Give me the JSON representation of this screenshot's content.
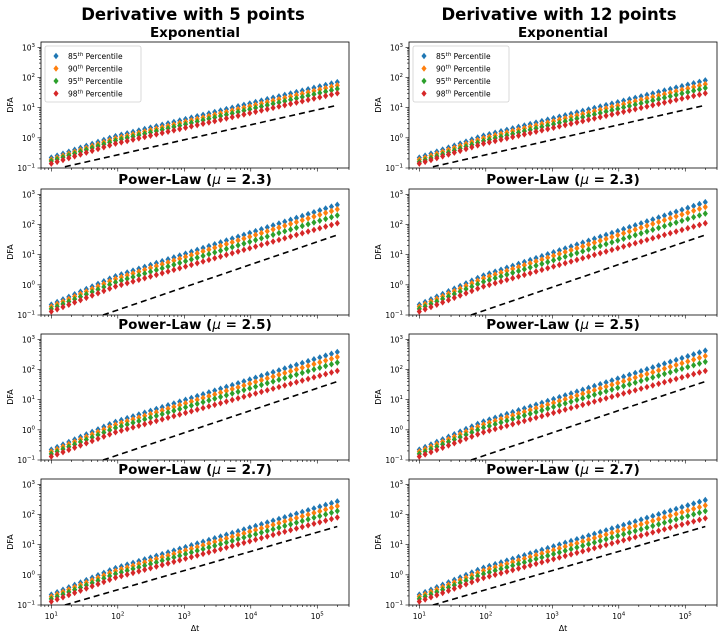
{
  "figure": {
    "column_titles": [
      "Derivative with 5 points",
      "Derivative with 12 points"
    ]
  },
  "colors": {
    "p85": "#1f77b4",
    "p90": "#ff7f0e",
    "p95": "#2ca02c",
    "p98": "#d62728",
    "reference_line": "#000000"
  },
  "chart_data": [
    {
      "type": "scatter",
      "col": 0,
      "row": 0,
      "title": "Exponential",
      "title_main": "Exponential",
      "title_mu": "",
      "xlabel": "",
      "ylabel": "DFA",
      "xscale": "log",
      "yscale": "log",
      "xlim": [
        7,
        300000
      ],
      "ylim": [
        0.1,
        1500
      ],
      "legend": "top-left",
      "reference_line": {
        "style": "dashed",
        "x": [
          16,
          200000
        ],
        "y": [
          0.11,
          12
        ]
      },
      "series": [
        {
          "name": "85th Percentile",
          "color": "#1f77b4",
          "x_start": 10,
          "x_end": 200000,
          "y_start": 0.22,
          "y_end": 70
        },
        {
          "name": "90th Percentile",
          "color": "#ff7f0e",
          "x_start": 10,
          "x_end": 200000,
          "y_start": 0.19,
          "y_end": 55
        },
        {
          "name": "95th Percentile",
          "color": "#2ca02c",
          "x_start": 10,
          "x_end": 200000,
          "y_start": 0.17,
          "y_end": 42
        },
        {
          "name": "98th Percentile",
          "color": "#d62728",
          "x_start": 10,
          "x_end": 200000,
          "y_start": 0.14,
          "y_end": 30
        }
      ]
    },
    {
      "type": "scatter",
      "col": 1,
      "row": 0,
      "title": "Exponential",
      "title_main": "Exponential",
      "title_mu": "",
      "xlabel": "",
      "ylabel": "DFA",
      "xscale": "log",
      "yscale": "log",
      "xlim": [
        7,
        300000
      ],
      "ylim": [
        0.1,
        1500
      ],
      "legend": "top-left",
      "reference_line": {
        "style": "dashed",
        "x": [
          16,
          200000
        ],
        "y": [
          0.11,
          12
        ]
      },
      "series": [
        {
          "name": "85th Percentile",
          "color": "#1f77b4",
          "x_start": 10,
          "x_end": 200000,
          "y_start": 0.22,
          "y_end": 80
        },
        {
          "name": "90th Percentile",
          "color": "#ff7f0e",
          "x_start": 10,
          "x_end": 200000,
          "y_start": 0.19,
          "y_end": 60
        },
        {
          "name": "95th Percentile",
          "color": "#2ca02c",
          "x_start": 10,
          "x_end": 200000,
          "y_start": 0.16,
          "y_end": 45
        },
        {
          "name": "98th Percentile",
          "color": "#d62728",
          "x_start": 10,
          "x_end": 200000,
          "y_start": 0.14,
          "y_end": 30
        }
      ]
    },
    {
      "type": "scatter",
      "col": 0,
      "row": 1,
      "title": "Power-Law (μ = 2.3)",
      "title_main": "Power-Law (",
      "title_mu": "μ",
      "title_rest": " = 2.3)",
      "xlabel": "",
      "ylabel": "DFA",
      "xscale": "log",
      "yscale": "log",
      "xlim": [
        7,
        300000
      ],
      "ylim": [
        0.1,
        1500
      ],
      "legend": "",
      "reference_line": {
        "style": "dashed",
        "x": [
          60,
          200000
        ],
        "y": [
          0.1,
          45
        ]
      },
      "series": [
        {
          "name": "85th Percentile",
          "color": "#1f77b4",
          "x_start": 10,
          "x_end": 200000,
          "y_start": 0.22,
          "y_end": 450
        },
        {
          "name": "90th Percentile",
          "color": "#ff7f0e",
          "x_start": 10,
          "x_end": 200000,
          "y_start": 0.19,
          "y_end": 320
        },
        {
          "name": "95th Percentile",
          "color": "#2ca02c",
          "x_start": 10,
          "x_end": 200000,
          "y_start": 0.16,
          "y_end": 200
        },
        {
          "name": "98th Percentile",
          "color": "#d62728",
          "x_start": 10,
          "x_end": 200000,
          "y_start": 0.13,
          "y_end": 110
        }
      ]
    },
    {
      "type": "scatter",
      "col": 1,
      "row": 1,
      "title": "Power-Law (μ = 2.3)",
      "title_main": "Power-Law (",
      "title_mu": "μ",
      "title_rest": " = 2.3)",
      "xlabel": "",
      "ylabel": "DFA",
      "xscale": "log",
      "yscale": "log",
      "xlim": [
        7,
        300000
      ],
      "ylim": [
        0.1,
        1500
      ],
      "legend": "",
      "reference_line": {
        "style": "dashed",
        "x": [
          60,
          200000
        ],
        "y": [
          0.1,
          45
        ]
      },
      "series": [
        {
          "name": "85th Percentile",
          "color": "#1f77b4",
          "x_start": 10,
          "x_end": 200000,
          "y_start": 0.22,
          "y_end": 550
        },
        {
          "name": "90th Percentile",
          "color": "#ff7f0e",
          "x_start": 10,
          "x_end": 200000,
          "y_start": 0.19,
          "y_end": 380
        },
        {
          "name": "95th Percentile",
          "color": "#2ca02c",
          "x_start": 10,
          "x_end": 200000,
          "y_start": 0.16,
          "y_end": 230
        },
        {
          "name": "98th Percentile",
          "color": "#d62728",
          "x_start": 10,
          "x_end": 200000,
          "y_start": 0.13,
          "y_end": 110
        }
      ]
    },
    {
      "type": "scatter",
      "col": 0,
      "row": 2,
      "title": "Power-Law (μ = 2.5)",
      "title_main": "Power-Law (",
      "title_mu": "μ",
      "title_rest": " = 2.5)",
      "xlabel": "",
      "ylabel": "DFA",
      "xscale": "log",
      "yscale": "log",
      "xlim": [
        7,
        300000
      ],
      "ylim": [
        0.1,
        1500
      ],
      "legend": "",
      "reference_line": {
        "style": "dashed",
        "x": [
          60,
          200000
        ],
        "y": [
          0.1,
          40
        ]
      },
      "series": [
        {
          "name": "85th Percentile",
          "color": "#1f77b4",
          "x_start": 10,
          "x_end": 200000,
          "y_start": 0.22,
          "y_end": 380
        },
        {
          "name": "90th Percentile",
          "color": "#ff7f0e",
          "x_start": 10,
          "x_end": 200000,
          "y_start": 0.19,
          "y_end": 260
        },
        {
          "name": "95th Percentile",
          "color": "#2ca02c",
          "x_start": 10,
          "x_end": 200000,
          "y_start": 0.16,
          "y_end": 170
        },
        {
          "name": "98th Percentile",
          "color": "#d62728",
          "x_start": 10,
          "x_end": 200000,
          "y_start": 0.13,
          "y_end": 90
        }
      ]
    },
    {
      "type": "scatter",
      "col": 1,
      "row": 2,
      "title": "Power-Law (μ = 2.5)",
      "title_main": "Power-Law (",
      "title_mu": "μ",
      "title_rest": " = 2.5)",
      "xlabel": "",
      "ylabel": "DFA",
      "xscale": "log",
      "yscale": "log",
      "xlim": [
        7,
        300000
      ],
      "ylim": [
        0.1,
        1500
      ],
      "legend": "",
      "reference_line": {
        "style": "dashed",
        "x": [
          60,
          200000
        ],
        "y": [
          0.1,
          40
        ]
      },
      "series": [
        {
          "name": "85th Percentile",
          "color": "#1f77b4",
          "x_start": 10,
          "x_end": 200000,
          "y_start": 0.22,
          "y_end": 420
        },
        {
          "name": "90th Percentile",
          "color": "#ff7f0e",
          "x_start": 10,
          "x_end": 200000,
          "y_start": 0.19,
          "y_end": 280
        },
        {
          "name": "95th Percentile",
          "color": "#2ca02c",
          "x_start": 10,
          "x_end": 200000,
          "y_start": 0.16,
          "y_end": 180
        },
        {
          "name": "98th Percentile",
          "color": "#d62728",
          "x_start": 10,
          "x_end": 200000,
          "y_start": 0.13,
          "y_end": 90
        }
      ]
    },
    {
      "type": "scatter",
      "col": 0,
      "row": 3,
      "title": "Power-Law (μ = 2.7)",
      "title_main": "Power-Law (",
      "title_mu": "μ",
      "title_rest": " = 2.7)",
      "xlabel": "Δt",
      "ylabel": "DFA",
      "xscale": "log",
      "yscale": "log",
      "xlim": [
        7,
        300000
      ],
      "ylim": [
        0.1,
        1500
      ],
      "legend": "",
      "reference_line": {
        "style": "dashed",
        "x": [
          16,
          200000
        ],
        "y": [
          0.1,
          40
        ]
      },
      "series": [
        {
          "name": "85th Percentile",
          "color": "#1f77b4",
          "x_start": 10,
          "x_end": 200000,
          "y_start": 0.22,
          "y_end": 270
        },
        {
          "name": "90th Percentile",
          "color": "#ff7f0e",
          "x_start": 10,
          "x_end": 200000,
          "y_start": 0.19,
          "y_end": 190
        },
        {
          "name": "95th Percentile",
          "color": "#2ca02c",
          "x_start": 10,
          "x_end": 200000,
          "y_start": 0.16,
          "y_end": 130
        },
        {
          "name": "98th Percentile",
          "color": "#d62728",
          "x_start": 10,
          "x_end": 200000,
          "y_start": 0.13,
          "y_end": 80
        }
      ]
    },
    {
      "type": "scatter",
      "col": 1,
      "row": 3,
      "title": "Power-Law (μ = 2.7)",
      "title_main": "Power-Law (",
      "title_mu": "μ",
      "title_rest": " = 2.7)",
      "xlabel": "Δt",
      "ylabel": "DFA",
      "xscale": "log",
      "yscale": "log",
      "xlim": [
        7,
        300000
      ],
      "ylim": [
        0.1,
        1500
      ],
      "legend": "",
      "reference_line": {
        "style": "dashed",
        "x": [
          16,
          200000
        ],
        "y": [
          0.1,
          40
        ]
      },
      "series": [
        {
          "name": "85th Percentile",
          "color": "#1f77b4",
          "x_start": 10,
          "x_end": 200000,
          "y_start": 0.22,
          "y_end": 300
        },
        {
          "name": "90th Percentile",
          "color": "#ff7f0e",
          "x_start": 10,
          "x_end": 200000,
          "y_start": 0.19,
          "y_end": 200
        },
        {
          "name": "95th Percentile",
          "color": "#2ca02c",
          "x_start": 10,
          "x_end": 200000,
          "y_start": 0.16,
          "y_end": 130
        },
        {
          "name": "98th Percentile",
          "color": "#d62728",
          "x_start": 10,
          "x_end": 200000,
          "y_start": 0.13,
          "y_end": 75
        }
      ]
    }
  ],
  "axis_ticks": {
    "y": [
      {
        "base": "10",
        "exp": "−1",
        "value": 0.1
      },
      {
        "base": "10",
        "exp": "0",
        "value": 1
      },
      {
        "base": "10",
        "exp": "1",
        "value": 10
      },
      {
        "base": "10",
        "exp": "2",
        "value": 100
      },
      {
        "base": "10",
        "exp": "3",
        "value": 1000
      }
    ],
    "x": [
      {
        "base": "10",
        "exp": "1",
        "value": 10
      },
      {
        "base": "10",
        "exp": "2",
        "value": 100
      },
      {
        "base": "10",
        "exp": "3",
        "value": 1000
      },
      {
        "base": "10",
        "exp": "4",
        "value": 10000
      },
      {
        "base": "10",
        "exp": "5",
        "value": 100000
      }
    ]
  }
}
